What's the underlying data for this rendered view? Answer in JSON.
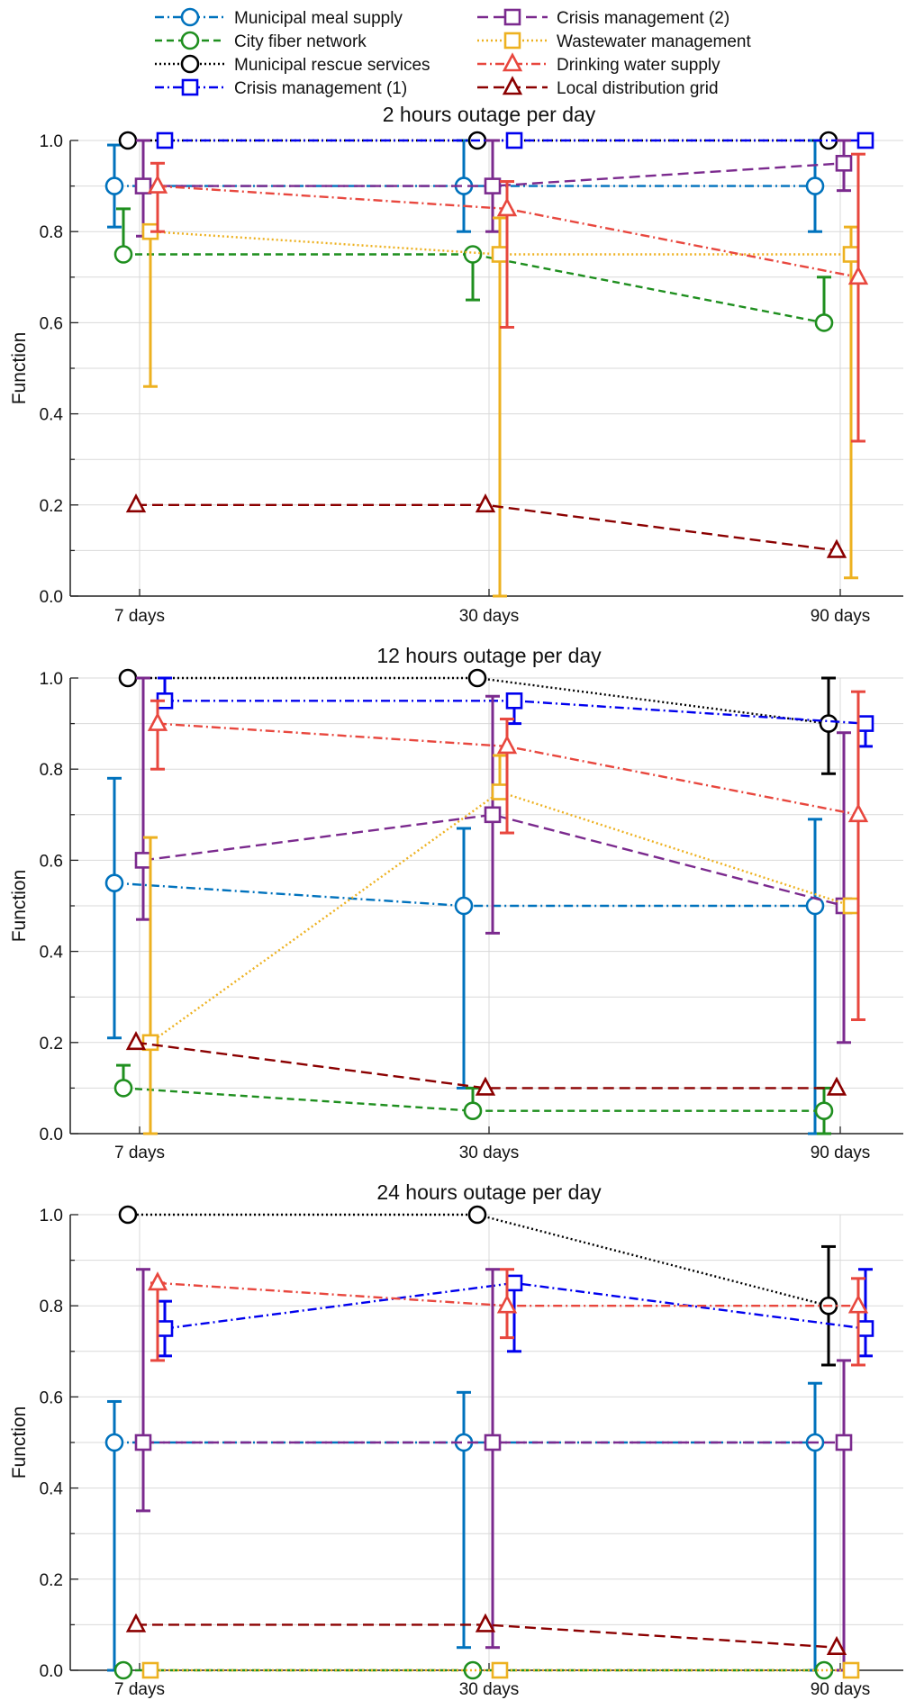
{
  "legend": [
    {
      "name": "Municipal meal supply",
      "color": "#0072bd",
      "dash": "10,4,2,4",
      "marker": "circle"
    },
    {
      "name": "City fiber network",
      "color": "#1f8f1f",
      "dash": "8,5",
      "marker": "circle"
    },
    {
      "name": "Municipal rescue services",
      "color": "#000000",
      "dash": "2,3",
      "marker": "circle"
    },
    {
      "name": "Crisis management (1)",
      "color": "#0000ee",
      "dash": "10,4,2,4",
      "marker": "square"
    },
    {
      "name": "Crisis management (2)",
      "color": "#7b2a8e",
      "dash": "12,6",
      "marker": "square"
    },
    {
      "name": "Wastewater management",
      "color": "#edb120",
      "dash": "2,3",
      "marker": "square"
    },
    {
      "name": "Drinking water supply",
      "color": "#e8473e",
      "dash": "10,4,2,4",
      "marker": "triangle"
    },
    {
      "name": "Local distribution grid",
      "color": "#8b0000",
      "dash": "12,6",
      "marker": "triangle"
    }
  ],
  "chart_data": [
    {
      "type": "line",
      "title": "2 hours outage per day",
      "ylabel": "Function",
      "categories": [
        "7 days",
        "30 days",
        "90 days"
      ],
      "ylim": [
        0,
        1
      ],
      "yticks": [
        "0.0",
        "0.2",
        "0.4",
        "0.6",
        "0.8",
        "1.0"
      ],
      "grid": true,
      "series": [
        {
          "name": "Municipal meal supply",
          "values": [
            0.9,
            0.9,
            0.9
          ],
          "lo": [
            0.81,
            0.8,
            0.8
          ],
          "hi": [
            0.99,
            1.0,
            1.0
          ]
        },
        {
          "name": "City fiber network",
          "values": [
            0.75,
            0.75,
            0.6
          ],
          "lo": [
            0.75,
            0.65,
            0.6
          ],
          "hi": [
            0.85,
            0.75,
            0.7
          ]
        },
        {
          "name": "Municipal rescue services",
          "values": [
            1.0,
            1.0,
            1.0
          ]
        },
        {
          "name": "Crisis management (1)",
          "values": [
            1.0,
            1.0,
            1.0
          ]
        },
        {
          "name": "Crisis management (2)",
          "values": [
            0.9,
            0.9,
            0.95
          ],
          "lo": [
            0.79,
            0.8,
            0.89
          ],
          "hi": [
            1.0,
            1.0,
            1.0
          ]
        },
        {
          "name": "Wastewater management",
          "values": [
            0.8,
            0.75,
            0.75
          ],
          "lo": [
            0.46,
            0.0,
            0.04
          ],
          "hi": [
            0.8,
            0.83,
            0.81
          ]
        },
        {
          "name": "Drinking water supply",
          "values": [
            0.9,
            0.85,
            0.7
          ],
          "lo": [
            0.8,
            0.59,
            0.34
          ],
          "hi": [
            0.95,
            0.91,
            0.97
          ]
        },
        {
          "name": "Local distribution grid",
          "values": [
            0.2,
            0.2,
            0.1
          ]
        }
      ]
    },
    {
      "type": "line",
      "title": "12 hours outage per day",
      "ylabel": "Function",
      "categories": [
        "7 days",
        "30 days",
        "90 days"
      ],
      "ylim": [
        0,
        1
      ],
      "yticks": [
        "0.0",
        "0.2",
        "0.4",
        "0.6",
        "0.8",
        "1.0"
      ],
      "grid": true,
      "series": [
        {
          "name": "Municipal meal supply",
          "values": [
            0.55,
            0.5,
            0.5
          ],
          "lo": [
            0.21,
            0.1,
            0.0
          ],
          "hi": [
            0.78,
            0.67,
            0.69
          ]
        },
        {
          "name": "City fiber network",
          "values": [
            0.1,
            0.05,
            0.05
          ],
          "lo": [
            0.1,
            0.05,
            0.0
          ],
          "hi": [
            0.15,
            0.1,
            0.1
          ]
        },
        {
          "name": "Municipal rescue services",
          "values": [
            1.0,
            1.0,
            0.9
          ],
          "lo": [
            1.0,
            1.0,
            0.79
          ],
          "hi": [
            1.0,
            1.0,
            1.0
          ]
        },
        {
          "name": "Crisis management (1)",
          "values": [
            0.95,
            0.95,
            0.9
          ],
          "lo": [
            0.95,
            0.9,
            0.85
          ],
          "hi": [
            1.0,
            0.95,
            0.9
          ]
        },
        {
          "name": "Crisis management (2)",
          "values": [
            0.6,
            0.7,
            0.5
          ],
          "lo": [
            0.47,
            0.44,
            0.2
          ],
          "hi": [
            1.0,
            0.96,
            0.88
          ]
        },
        {
          "name": "Wastewater management",
          "values": [
            0.2,
            0.75,
            0.5
          ],
          "lo": [
            0.0,
            0.75,
            0.5
          ],
          "hi": [
            0.65,
            0.83,
            0.5
          ]
        },
        {
          "name": "Drinking water supply",
          "values": [
            0.9,
            0.85,
            0.7
          ],
          "lo": [
            0.8,
            0.66,
            0.25
          ],
          "hi": [
            0.95,
            0.91,
            0.97
          ]
        },
        {
          "name": "Local distribution grid",
          "values": [
            0.2,
            0.1,
            0.1
          ]
        }
      ]
    },
    {
      "type": "line",
      "title": "24 hours outage per day",
      "ylabel": "Function",
      "categories": [
        "7 days",
        "30 days",
        "90 days"
      ],
      "ylim": [
        0,
        1
      ],
      "yticks": [
        "0.0",
        "0.2",
        "0.4",
        "0.6",
        "0.8",
        "1.0"
      ],
      "grid": true,
      "series": [
        {
          "name": "Municipal meal supply",
          "values": [
            0.5,
            0.5,
            0.5
          ],
          "lo": [
            0.0,
            0.05,
            0.0
          ],
          "hi": [
            0.59,
            0.61,
            0.63
          ]
        },
        {
          "name": "City fiber network",
          "values": [
            0.0,
            0.0,
            0.0
          ]
        },
        {
          "name": "Municipal rescue services",
          "values": [
            1.0,
            1.0,
            0.8
          ],
          "lo": [
            1.0,
            1.0,
            0.67
          ],
          "hi": [
            1.0,
            1.0,
            0.93
          ]
        },
        {
          "name": "Crisis management (1)",
          "values": [
            0.75,
            0.85,
            0.75
          ],
          "lo": [
            0.69,
            0.7,
            0.69
          ],
          "hi": [
            0.81,
            0.85,
            0.88
          ]
        },
        {
          "name": "Crisis management (2)",
          "values": [
            0.5,
            0.5,
            0.5
          ],
          "lo": [
            0.35,
            0.05,
            0.0
          ],
          "hi": [
            0.88,
            0.88,
            0.68
          ]
        },
        {
          "name": "Wastewater management",
          "values": [
            0.0,
            0.0,
            0.0
          ]
        },
        {
          "name": "Drinking water supply",
          "values": [
            0.85,
            0.8,
            0.8
          ],
          "lo": [
            0.68,
            0.73,
            0.67
          ],
          "hi": [
            0.85,
            0.88,
            0.86
          ]
        },
        {
          "name": "Local distribution grid",
          "values": [
            0.1,
            0.1,
            0.05
          ]
        }
      ]
    }
  ]
}
